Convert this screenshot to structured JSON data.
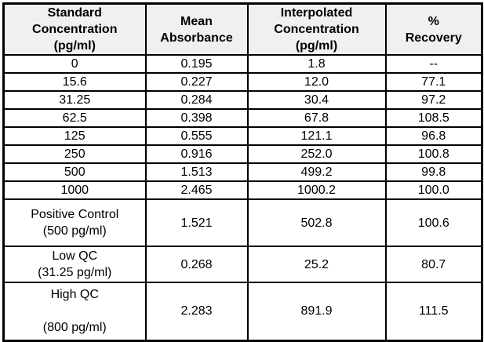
{
  "table": {
    "headers": {
      "standard": "Standard\nConcentration\n(pg/ml)",
      "absorbance": "Mean\nAbsorbance",
      "interpolated": "Interpolated\nConcentration\n(pg/ml)",
      "recovery": "%\nRecovery"
    },
    "rows": [
      {
        "standard": "0",
        "absorbance": "0.195",
        "interpolated": "1.8",
        "recovery": "--"
      },
      {
        "standard": "15.6",
        "absorbance": "0.227",
        "interpolated": "12.0",
        "recovery": "77.1"
      },
      {
        "standard": "31.25",
        "absorbance": "0.284",
        "interpolated": "30.4",
        "recovery": "97.2"
      },
      {
        "standard": "62.5",
        "absorbance": "0.398",
        "interpolated": "67.8",
        "recovery": "108.5"
      },
      {
        "standard": "125",
        "absorbance": "0.555",
        "interpolated": "121.1",
        "recovery": "96.8"
      },
      {
        "standard": "250",
        "absorbance": "0.916",
        "interpolated": "252.0",
        "recovery": "100.8"
      },
      {
        "standard": "500",
        "absorbance": "1.513",
        "interpolated": "499.2",
        "recovery": "99.8"
      },
      {
        "standard": "1000",
        "absorbance": "2.465",
        "interpolated": "1000.2",
        "recovery": "100.0"
      },
      {
        "standard": "Positive Control\n(500 pg/ml)",
        "absorbance": "1.521",
        "interpolated": "502.8",
        "recovery": "100.6"
      },
      {
        "standard": "Low QC\n(31.25 pg/ml)",
        "absorbance": "0.268",
        "interpolated": "25.2",
        "recovery": "80.7"
      },
      {
        "standard": "High QC\n\n(800 pg/ml)",
        "absorbance": "2.283",
        "interpolated": "891.9",
        "recovery": "111.5"
      }
    ],
    "colors": {
      "header_background": "#f0f0f0",
      "border": "#000000",
      "text": "#000000"
    }
  }
}
